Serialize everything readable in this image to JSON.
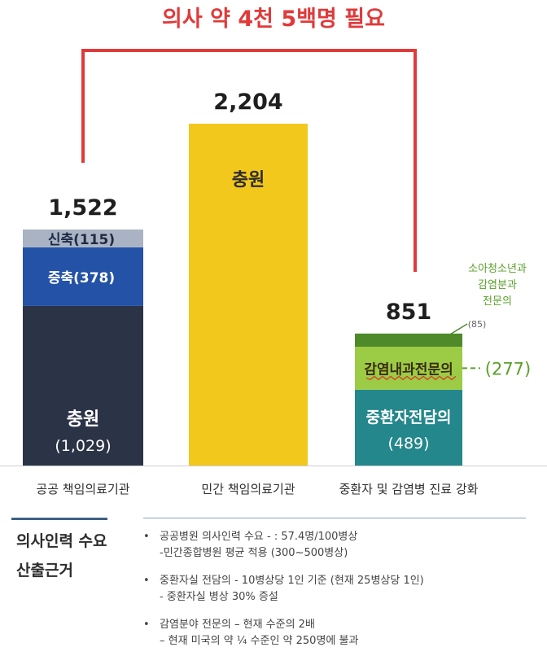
{
  "chart_data": {
    "type": "bar",
    "title": "의사 약 4천 5백명 필요",
    "categories": [
      "공공 책임의료기관",
      "민간 책임의료기관",
      "중환자 및 감염병 진료 강화"
    ],
    "totals": [
      "1,522",
      "2,204",
      "851"
    ],
    "ylim": [
      0,
      2400
    ],
    "bars": [
      {
        "total": 1522,
        "segments": [
          {
            "label": "충원",
            "value_label": "(1,029)",
            "value": 1029,
            "color": "#2b3346"
          },
          {
            "label": "증축",
            "value_label": "(378)",
            "value": 378,
            "color": "#2452a6"
          },
          {
            "label": "신축",
            "value_label": "(115)",
            "value": 115,
            "color": "#a9b3c4"
          }
        ]
      },
      {
        "total": 2204,
        "segments": [
          {
            "label": "충원",
            "value_label": "",
            "value": 2204,
            "color": "#f3c81d"
          }
        ]
      },
      {
        "total": 851,
        "segments": [
          {
            "label": "중환자전담의",
            "value_label": "(489)",
            "value": 489,
            "color": "#23878c"
          },
          {
            "label": "감염내과전문의",
            "value_label": "(277)",
            "value": 277,
            "color": "#9ccc45"
          },
          {
            "label": "",
            "value_label": "",
            "value": 85,
            "color": "#4f8a2a"
          }
        ]
      }
    ],
    "annotations": {
      "side_value": "(277)",
      "pediatric_lines": [
        "소아청소년과",
        "감염분과",
        "전문의"
      ],
      "pediatric_value": "(85)"
    },
    "colors": {
      "bracket": "#e03a3a",
      "title": "#e03a3a",
      "green_text": "#5aa02a"
    }
  },
  "footer": {
    "title_line1": "의사인력 수요",
    "title_line2": "산출근거",
    "bullets": [
      {
        "lines": [
          "공공병원 의사인력 수요 - : 57.4명/100병상",
          "-민간종합병원 평균 적용 (300~500병상)"
        ]
      },
      {
        "lines": [
          "중환자실 전담의 - 10병상당 1인 기준 (현재 25병상당 1인)",
          "- 중환자실 병상 30% 증설"
        ]
      },
      {
        "lines": [
          "감염분야 전문의 – 현재 수준의 2배",
          "– 현재 미국의 약 ¼ 수준인 약 250명에 불과"
        ]
      }
    ],
    "bullet_symbol": "•"
  }
}
